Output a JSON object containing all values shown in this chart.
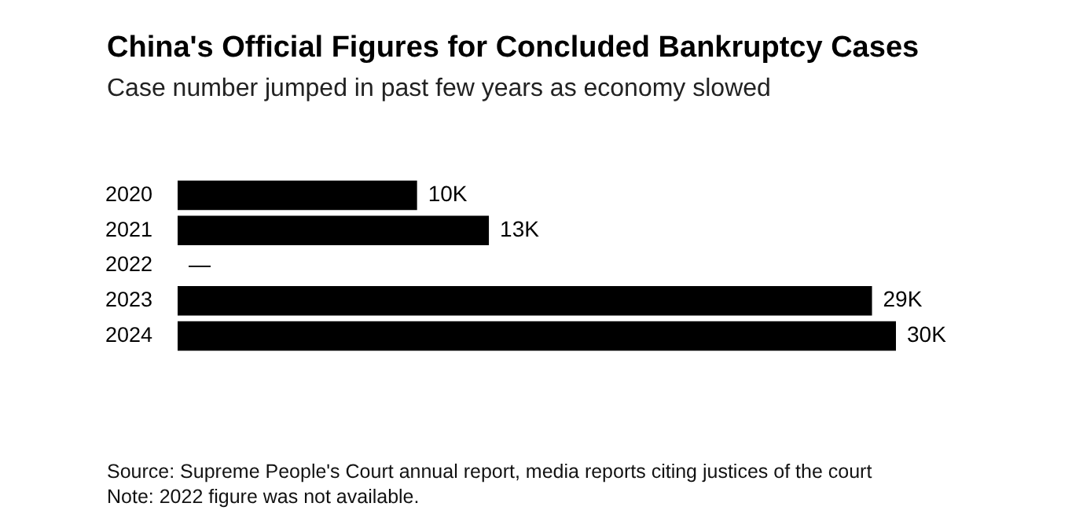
{
  "chart_data": {
    "type": "bar",
    "orientation": "horizontal",
    "title": "China's Official Figures for Concluded Bankruptcy Cases",
    "subtitle": "Case number jumped in past few years as economy slowed",
    "categories": [
      "2020",
      "2021",
      "2022",
      "2023",
      "2024"
    ],
    "values": [
      10000,
      13000,
      null,
      29000,
      30000
    ],
    "value_labels": [
      "10K",
      "13K",
      "—",
      "29K",
      "30K"
    ],
    "color": "#000000",
    "legend": false,
    "annotations": [
      "Source: Supreme People's Court annual report, media reports citing justices of the court",
      "Note: 2022 figure was not available."
    ]
  }
}
